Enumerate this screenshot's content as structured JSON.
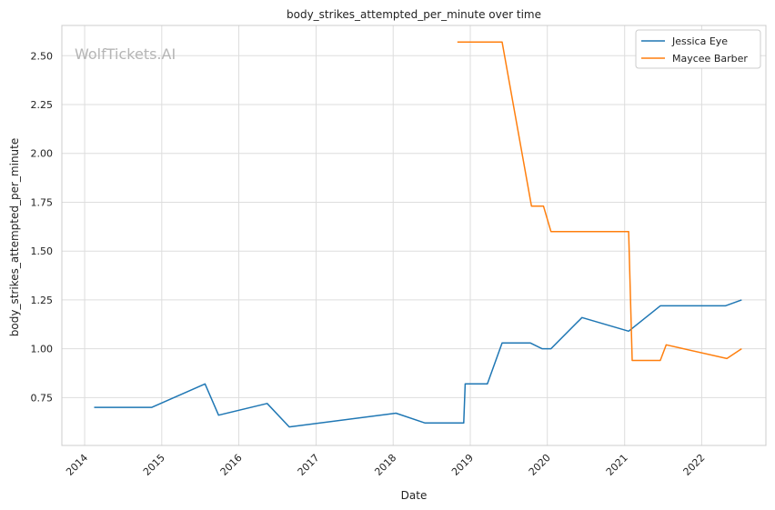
{
  "chart_data": {
    "type": "line",
    "title": "body_strikes_attempted_per_minute over time",
    "xlabel": "Date",
    "ylabel": "body_strikes_attempted_per_minute",
    "x_ticks": [
      "2014",
      "2015",
      "2016",
      "2017",
      "2018",
      "2019",
      "2020",
      "2021",
      "2022"
    ],
    "y_ticks": [
      "0.75",
      "1.00",
      "1.25",
      "1.50",
      "1.75",
      "2.00",
      "2.25",
      "2.50"
    ],
    "xlim": [
      "2013-09-15",
      "2022-11-01"
    ],
    "ylim": [
      0.505,
      2.655
    ],
    "grid": true,
    "legend_position": "top-right",
    "watermark": "WolfTickets.AI",
    "series": [
      {
        "name": "Jessica Eye",
        "color": "#1f77b4",
        "points": [
          [
            "2014-02-15",
            0.7
          ],
          [
            "2014-11-15",
            0.7
          ],
          [
            "2015-07-25",
            0.82
          ],
          [
            "2015-09-27",
            0.66
          ],
          [
            "2016-05-14",
            0.72
          ],
          [
            "2016-08-27",
            0.6
          ],
          [
            "2018-01-14",
            0.67
          ],
          [
            "2018-06-01",
            0.62
          ],
          [
            "2018-12-01",
            0.62
          ],
          [
            "2018-12-08",
            0.82
          ],
          [
            "2019-03-23",
            0.82
          ],
          [
            "2019-06-01",
            1.03
          ],
          [
            "2019-10-12",
            1.03
          ],
          [
            "2019-12-07",
            1.0
          ],
          [
            "2020-01-18",
            1.0
          ],
          [
            "2020-06-13",
            1.16
          ],
          [
            "2021-01-20",
            1.09
          ],
          [
            "2021-06-19",
            1.22
          ],
          [
            "2022-04-23",
            1.22
          ],
          [
            "2022-07-09",
            1.25
          ]
        ]
      },
      {
        "name": "Maycee Barber",
        "color": "#ff7f0e",
        "points": [
          [
            "2018-11-01",
            2.57
          ],
          [
            "2019-06-01",
            2.57
          ],
          [
            "2019-10-18",
            1.73
          ],
          [
            "2019-12-14",
            1.73
          ],
          [
            "2020-01-18",
            1.6
          ],
          [
            "2021-01-20",
            1.6
          ],
          [
            "2021-02-06",
            0.94
          ],
          [
            "2021-06-19",
            0.94
          ],
          [
            "2021-07-17",
            1.02
          ],
          [
            "2022-04-30",
            0.95
          ],
          [
            "2022-07-09",
            1.0
          ]
        ]
      }
    ]
  }
}
